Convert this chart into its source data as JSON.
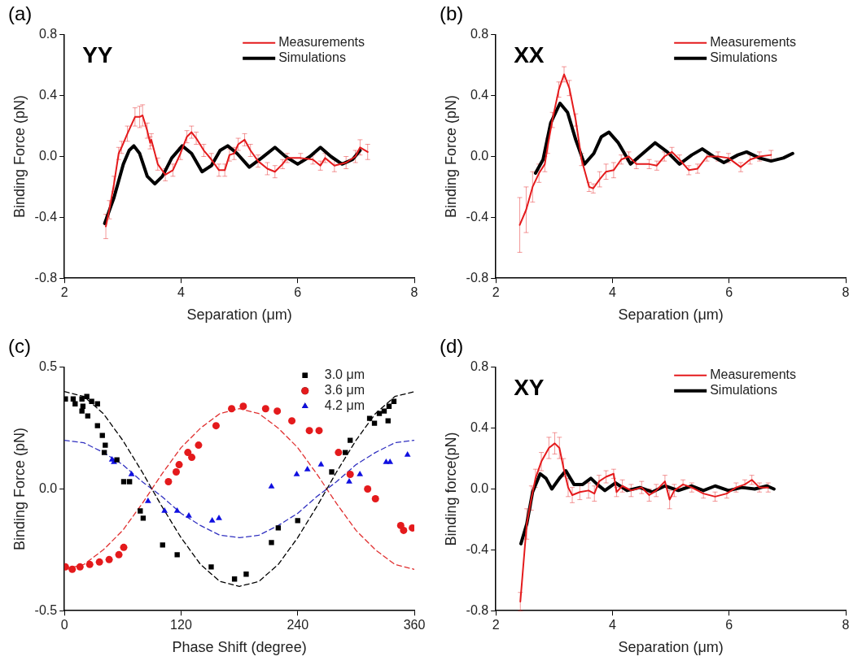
{
  "chart_data": [
    {
      "type": "line",
      "title": "(a)",
      "xlabel": "Separation (μm)",
      "ylabel": "Binding Force (pN)",
      "annotations": [
        "YY"
      ],
      "legend": "top right",
      "grid": false,
      "xlim": [
        2,
        8
      ],
      "xticks": [
        2,
        4,
        6,
        8
      ],
      "ylim": [
        -0.8,
        0.8
      ],
      "yticks": [
        {
          "value": -0.8,
          "label": "-0.8"
        },
        {
          "value": -0.4,
          "label": "-0.4"
        },
        {
          "value": 0,
          "label": "0.0"
        },
        {
          "value": 0.4,
          "label": "0.4"
        },
        {
          "value": 0.8,
          "label": "0.8"
        }
      ],
      "series": [
        {
          "name": "Measurements",
          "color": "#e41a1c",
          "x": [
            2.71,
            2.77,
            2.85,
            2.93,
            2.98,
            3.08,
            3.21,
            3.29,
            3.34,
            3.42,
            3.47,
            3.49,
            3.6,
            3.73,
            3.86,
            3.99,
            4.1,
            4.18,
            4.26,
            4.39,
            4.52,
            4.65,
            4.75,
            4.83,
            4.91,
            4.98,
            5.09,
            5.19,
            5.32,
            5.48,
            5.61,
            5.74,
            5.82,
            6.05,
            6.26,
            6.39,
            6.47,
            6.63,
            6.83,
            6.99,
            7.07,
            7.2
          ],
          "values": [
            -0.46,
            -0.35,
            -0.18,
            0.02,
            0.06,
            0.15,
            0.26,
            0.26,
            0.27,
            0.17,
            0.09,
            0.11,
            -0.05,
            -0.12,
            -0.09,
            0.02,
            0.13,
            0.16,
            0.12,
            0.04,
            -0.02,
            -0.09,
            -0.09,
            0.01,
            0.02,
            0.08,
            0.11,
            0.04,
            -0.03,
            -0.08,
            -0.1,
            -0.05,
            -0.01,
            -0.01,
            -0.02,
            -0.06,
            -0.01,
            -0.06,
            -0.04,
            0.0,
            0.06,
            0.03
          ],
          "errors": [
            0.08,
            0.06,
            0.05,
            0.04,
            0.04,
            0.05,
            0.06,
            0.07,
            0.07,
            0.05,
            0.04,
            0.04,
            0.04,
            0.04,
            0.04,
            0.04,
            0.04,
            0.04,
            0.04,
            0.04,
            0.04,
            0.04,
            0.04,
            0.04,
            0.04,
            0.04,
            0.04,
            0.04,
            0.04,
            0.04,
            0.04,
            0.03,
            0.03,
            0.03,
            0.03,
            0.03,
            0.03,
            0.04,
            0.04,
            0.04,
            0.05,
            0.05
          ]
        },
        {
          "name": "Simulations",
          "color": "#000000",
          "x": [
            2.69,
            2.85,
            3.01,
            3.11,
            3.19,
            3.29,
            3.42,
            3.55,
            3.68,
            3.84,
            4.02,
            4.18,
            4.36,
            4.52,
            4.67,
            4.8,
            4.96,
            5.17,
            5.38,
            5.61,
            5.79,
            6.0,
            6.21,
            6.39,
            6.57,
            6.76,
            6.94,
            7.07
          ],
          "values": [
            -0.44,
            -0.27,
            -0.05,
            0.04,
            0.07,
            0.02,
            -0.13,
            -0.18,
            -0.13,
            -0.01,
            0.07,
            0.02,
            -0.1,
            -0.06,
            0.04,
            0.07,
            0.02,
            -0.07,
            -0.01,
            0.06,
            0.0,
            -0.05,
            0.0,
            0.06,
            0.0,
            -0.05,
            -0.02,
            0.04
          ]
        }
      ]
    },
    {
      "type": "line",
      "title": "(b)",
      "xlabel": "Separation (μm)",
      "ylabel": "Binding Force (pN)",
      "annotations": [
        "XX"
      ],
      "legend": "top right",
      "grid": false,
      "xlim": [
        2,
        8
      ],
      "xticks": [
        2,
        4,
        6,
        8
      ],
      "ylim": [
        -0.8,
        0.8
      ],
      "yticks": [
        {
          "value": -0.8,
          "label": "-0.8"
        },
        {
          "value": -0.4,
          "label": "-0.4"
        },
        {
          "value": 0,
          "label": "0.0"
        },
        {
          "value": 0.4,
          "label": "0.4"
        },
        {
          "value": 0.8,
          "label": "0.8"
        }
      ],
      "series": [
        {
          "name": "Measurements",
          "color": "#e41a1c",
          "x": [
            2.41,
            2.52,
            2.63,
            2.74,
            2.84,
            2.89,
            2.97,
            3.08,
            3.17,
            3.26,
            3.37,
            3.47,
            3.6,
            3.67,
            3.78,
            3.89,
            4.02,
            4.15,
            4.28,
            4.41,
            4.63,
            4.76,
            4.89,
            5.02,
            5.15,
            5.31,
            5.46,
            5.62,
            5.81,
            5.99,
            6.2,
            6.36,
            6.52,
            6.72
          ],
          "values": [
            -0.45,
            -0.35,
            -0.2,
            -0.11,
            -0.05,
            0.07,
            0.24,
            0.44,
            0.54,
            0.45,
            0.24,
            -0.02,
            -0.2,
            -0.21,
            -0.15,
            -0.1,
            -0.09,
            -0.02,
            0.0,
            -0.05,
            -0.05,
            -0.06,
            0.0,
            0.03,
            -0.02,
            -0.09,
            -0.08,
            0.0,
            0.0,
            -0.01,
            -0.07,
            -0.02,
            0.0,
            0.01
          ],
          "errors": [
            0.18,
            0.15,
            0.1,
            0.06,
            0.05,
            0.05,
            0.05,
            0.05,
            0.05,
            0.05,
            0.04,
            0.04,
            0.03,
            0.03,
            0.05,
            0.05,
            0.05,
            0.03,
            0.03,
            0.03,
            0.03,
            0.03,
            0.03,
            0.03,
            0.03,
            0.03,
            0.03,
            0.03,
            0.03,
            0.03,
            0.03,
            0.03,
            0.03,
            0.03
          ]
        },
        {
          "name": "Simulations",
          "color": "#000000",
          "x": [
            2.68,
            2.81,
            2.94,
            3.1,
            3.23,
            3.37,
            3.52,
            3.68,
            3.81,
            3.94,
            4.1,
            4.31,
            4.52,
            4.73,
            4.94,
            5.15,
            5.36,
            5.54,
            5.73,
            5.91,
            6.15,
            6.3,
            6.52,
            6.72,
            6.93,
            7.09
          ],
          "values": [
            -0.11,
            -0.02,
            0.22,
            0.35,
            0.29,
            0.11,
            -0.05,
            0.02,
            0.13,
            0.16,
            0.09,
            -0.05,
            0.02,
            0.09,
            0.03,
            -0.05,
            0.01,
            0.05,
            0.0,
            -0.04,
            0.01,
            0.03,
            -0.01,
            -0.03,
            -0.01,
            0.02
          ]
        }
      ]
    },
    {
      "type": "scatter",
      "title": "(c)",
      "xlabel": "Phase Shift (degree)",
      "ylabel": "Binding Force (pN)",
      "legend": "top right",
      "grid": false,
      "xlim": [
        0,
        360
      ],
      "xticks": [
        0,
        120,
        240,
        360
      ],
      "ylim": [
        -0.5,
        0.5
      ],
      "yticks": [
        {
          "value": -0.5,
          "label": "-0.5"
        },
        {
          "value": 0,
          "label": "0.0"
        },
        {
          "value": 0.5,
          "label": "0.5"
        }
      ],
      "series": [
        {
          "type": "line",
          "line_style": "dashed",
          "color": "#000000",
          "x": [
            0,
            20,
            40,
            60,
            80,
            100,
            120,
            140,
            160,
            180,
            200,
            220,
            240,
            260,
            280,
            300,
            320,
            340,
            360
          ],
          "values": [
            0.4,
            0.38,
            0.31,
            0.2,
            0.07,
            -0.07,
            -0.2,
            -0.31,
            -0.38,
            -0.4,
            -0.38,
            -0.31,
            -0.2,
            -0.07,
            0.07,
            0.2,
            0.31,
            0.38,
            0.4
          ]
        },
        {
          "type": "line",
          "line_style": "dashed",
          "color": "#e03030",
          "x": [
            0,
            20,
            40,
            60,
            80,
            100,
            120,
            140,
            160,
            180,
            200,
            220,
            240,
            260,
            280,
            300,
            320,
            340,
            360
          ],
          "values": [
            -0.33,
            -0.31,
            -0.25,
            -0.17,
            -0.06,
            0.06,
            0.17,
            0.25,
            0.31,
            0.33,
            0.31,
            0.25,
            0.17,
            0.06,
            -0.06,
            -0.17,
            -0.25,
            -0.31,
            -0.33
          ]
        },
        {
          "type": "line",
          "line_style": "dashed",
          "color": "#3030c0",
          "x": [
            0,
            20,
            40,
            60,
            80,
            100,
            120,
            140,
            160,
            180,
            200,
            220,
            240,
            260,
            280,
            300,
            320,
            340,
            360
          ],
          "values": [
            0.2,
            0.19,
            0.15,
            0.1,
            0.03,
            -0.03,
            -0.1,
            -0.15,
            -0.19,
            -0.2,
            -0.19,
            -0.15,
            -0.1,
            -0.03,
            0.03,
            0.1,
            0.15,
            0.19,
            0.2
          ]
        },
        {
          "name": "3.0 μm",
          "marker": "square",
          "color": "#000000",
          "x": [
            1,
            9,
            11,
            18,
            23,
            19,
            18,
            24,
            28,
            34,
            34,
            39,
            42,
            41,
            54,
            61,
            67,
            78,
            81,
            101,
            116,
            151,
            175,
            187,
            213,
            220,
            240,
            275,
            289,
            294,
            314,
            319,
            324,
            329,
            333,
            334,
            339
          ],
          "values": [
            0.37,
            0.37,
            0.35,
            0.37,
            0.38,
            0.34,
            0.32,
            0.3,
            0.36,
            0.35,
            0.26,
            0.22,
            0.18,
            0.15,
            0.12,
            0.03,
            0.03,
            -0.09,
            -0.12,
            -0.23,
            -0.27,
            -0.32,
            -0.37,
            -0.35,
            -0.22,
            -0.16,
            -0.13,
            0.07,
            0.15,
            0.2,
            0.29,
            0.27,
            0.31,
            0.32,
            0.28,
            0.34,
            0.36
          ]
        },
        {
          "name": "3.6 μm",
          "marker": "circle",
          "color": "#e41a1c",
          "x": [
            1,
            8,
            16,
            26,
            36,
            46,
            56,
            61,
            107,
            115,
            118,
            127,
            131,
            138,
            156,
            172,
            184,
            207,
            219,
            234,
            252,
            262,
            282,
            294,
            312,
            320,
            346,
            349,
            358
          ],
          "values": [
            -0.32,
            -0.33,
            -0.32,
            -0.31,
            -0.3,
            -0.29,
            -0.27,
            -0.24,
            0.03,
            0.07,
            0.1,
            0.15,
            0.13,
            0.18,
            0.26,
            0.33,
            0.34,
            0.33,
            0.32,
            0.28,
            0.24,
            0.24,
            0.15,
            0.06,
            0.0,
            -0.04,
            -0.15,
            -0.17,
            -0.16
          ]
        },
        {
          "name": "4.2 μm",
          "marker": "triangle",
          "color": "#1010e0",
          "x": [
            49,
            51,
            69,
            86,
            103,
            116,
            128,
            152,
            159,
            213,
            239,
            250,
            264,
            293,
            304,
            331,
            335,
            353
          ],
          "values": [
            0.12,
            0.11,
            0.06,
            -0.05,
            -0.09,
            -0.09,
            -0.11,
            -0.13,
            -0.12,
            0.01,
            0.06,
            0.08,
            0.1,
            0.03,
            0.06,
            0.11,
            0.11,
            0.14
          ]
        }
      ]
    },
    {
      "type": "line",
      "title": "(d)",
      "xlabel": "Separation (μm)",
      "ylabel": "Binding force(pN)",
      "annotations": [
        "XY"
      ],
      "legend": "top right",
      "grid": false,
      "xlim": [
        2,
        8
      ],
      "xticks": [
        2,
        4,
        6,
        8
      ],
      "ylim": [
        -0.8,
        0.8
      ],
      "yticks": [
        {
          "value": -0.8,
          "label": "-0.8"
        },
        {
          "value": -0.4,
          "label": "-0.4"
        },
        {
          "value": 0,
          "label": "0.0"
        },
        {
          "value": 0.4,
          "label": "0.4"
        },
        {
          "value": 0.8,
          "label": "0.8"
        }
      ],
      "series": [
        {
          "name": "Measurements",
          "color": "#e41a1c",
          "x": [
            2.42,
            2.53,
            2.61,
            2.68,
            2.78,
            2.91,
            3.01,
            3.09,
            3.16,
            3.24,
            3.31,
            3.44,
            3.59,
            3.69,
            3.77,
            3.89,
            4.02,
            4.07,
            4.17,
            4.32,
            4.5,
            4.63,
            4.75,
            4.9,
            4.98,
            5.06,
            5.21,
            5.36,
            5.56,
            5.76,
            5.96,
            6.12,
            6.27,
            6.39,
            6.52,
            6.67
          ],
          "values": [
            -0.74,
            -0.23,
            -0.06,
            0.07,
            0.18,
            0.27,
            0.3,
            0.27,
            0.14,
            0.01,
            -0.04,
            -0.02,
            -0.01,
            -0.03,
            0.05,
            0.08,
            0.1,
            -0.02,
            0.02,
            -0.01,
            0.01,
            -0.04,
            -0.01,
            0.05,
            -0.07,
            -0.01,
            0.03,
            0.01,
            -0.03,
            -0.05,
            -0.03,
            0.01,
            0.03,
            0.06,
            0.01,
            0.01
          ],
          "errors": [
            0.06,
            0.1,
            0.08,
            0.06,
            0.06,
            0.07,
            0.07,
            0.07,
            0.06,
            0.06,
            0.05,
            0.05,
            0.05,
            0.05,
            0.04,
            0.04,
            0.03,
            0.03,
            0.04,
            0.04,
            0.04,
            0.04,
            0.04,
            0.04,
            0.06,
            0.04,
            0.03,
            0.03,
            0.03,
            0.03,
            0.03,
            0.03,
            0.03,
            0.03,
            0.03,
            0.03
          ]
        },
        {
          "name": "Simulations",
          "color": "#000000",
          "x": [
            2.43,
            2.53,
            2.63,
            2.76,
            2.86,
            2.96,
            3.09,
            3.2,
            3.34,
            3.49,
            3.63,
            3.74,
            3.87,
            4.05,
            4.25,
            4.47,
            4.68,
            4.9,
            5.13,
            5.36,
            5.56,
            5.76,
            5.99,
            6.22,
            6.44,
            6.65,
            6.77
          ],
          "values": [
            -0.36,
            -0.23,
            -0.02,
            0.1,
            0.07,
            0.0,
            0.07,
            0.12,
            0.03,
            0.03,
            0.07,
            0.03,
            -0.01,
            0.04,
            -0.01,
            0.01,
            -0.02,
            0.02,
            -0.01,
            0.02,
            -0.01,
            0.02,
            -0.01,
            0.01,
            0.0,
            0.02,
            0.0
          ]
        }
      ]
    }
  ]
}
